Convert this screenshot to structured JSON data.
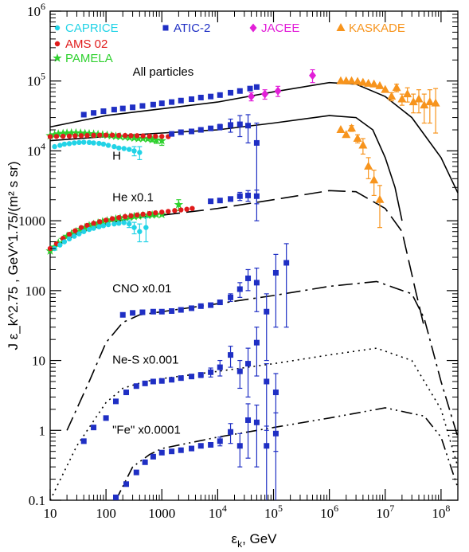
{
  "chart_data": {
    "type": "scatter",
    "xlabel": "ε_k, GeV",
    "ylabel": "J ε_k^2.75 , GeV^1.75/(m² s sr)",
    "xscale": "log",
    "yscale": "log",
    "xlim": [
      10,
      200000000
    ],
    "ylim": [
      0.1,
      1000000
    ],
    "grid": false,
    "legend_position": "top",
    "x_ticks": [
      {
        "value": 10,
        "label": "10"
      },
      {
        "value": 100,
        "label": "100"
      },
      {
        "value": 1000,
        "label": "1000"
      },
      {
        "value": 10000,
        "label": "10⁴"
      },
      {
        "value": 100000,
        "label": "10⁵"
      },
      {
        "value": 1000000,
        "label": "10⁶"
      },
      {
        "value": 10000000,
        "label": "10⁷"
      },
      {
        "value": 100000000,
        "label": "10⁸"
      }
    ],
    "y_ticks": [
      {
        "value": 0.1,
        "label": "0.1"
      },
      {
        "value": 1,
        "label": "1"
      },
      {
        "value": 10,
        "label": "10"
      },
      {
        "value": 100,
        "label": "100"
      },
      {
        "value": 1000,
        "label": "1000"
      },
      {
        "value": 10000,
        "label": "10⁴"
      },
      {
        "value": 100000,
        "label": "10⁵"
      },
      {
        "value": 1000000,
        "label": "10⁶"
      }
    ],
    "legend": [
      {
        "name": "CAPRICE",
        "color": "#22d3e6",
        "marker": "circle"
      },
      {
        "name": "ATIC-2",
        "color": "#1f2fc4",
        "marker": "square"
      },
      {
        "name": "JACEE",
        "color": "#e21fd8",
        "marker": "diamond"
      },
      {
        "name": "KASKADE",
        "color": "#f7941d",
        "marker": "triangle"
      },
      {
        "name": "AMS 02",
        "color": "#e01b1b",
        "marker": "circle"
      },
      {
        "name": "PAMELA",
        "color": "#2ed12e",
        "marker": "star"
      }
    ],
    "series_labels": [
      {
        "text": "All particles",
        "x": 300,
        "y": 120000
      },
      {
        "text": "H",
        "x": 130,
        "y": 7500
      },
      {
        "text": "He x0.1",
        "x": 130,
        "y": 1900
      },
      {
        "text": "CNO x0.01",
        "x": 130,
        "y": 95
      },
      {
        "text": "Ne-S x0.001",
        "x": 130,
        "y": 9
      },
      {
        "text": "\"Fe\" x0.0001",
        "x": 130,
        "y": 0.9
      }
    ],
    "curves": [
      {
        "name": "All particles",
        "dash": "solid",
        "x": [
          10,
          100,
          1000,
          10000,
          100000,
          1000000,
          3000000,
          10000000,
          30000000,
          100000000,
          200000000
        ],
        "y": [
          22000,
          32000,
          40000,
          50000,
          70000,
          95000,
          90000,
          60000,
          30000,
          8000,
          2500
        ]
      },
      {
        "name": "H",
        "dash": "solid",
        "x": [
          10,
          100,
          1000,
          10000,
          100000,
          1000000,
          3000000,
          6000000,
          10000000,
          15000000,
          20000000
        ],
        "y": [
          14000,
          16000,
          18000,
          20000,
          25000,
          32000,
          30000,
          20000,
          8000,
          3000,
          1000
        ]
      },
      {
        "name": "He x0.1",
        "dash": "longdash",
        "x": [
          10,
          30,
          100,
          300,
          1000,
          10000,
          100000,
          1000000,
          3000000,
          10000000,
          20000000,
          35000000,
          50000000
        ],
        "y": [
          380,
          650,
          900,
          1100,
          1200,
          1500,
          2000,
          2700,
          2600,
          1500,
          700,
          100,
          30
        ]
      },
      {
        "name": "CNO x0.01",
        "dash": "dashdot",
        "x": [
          20,
          50,
          100,
          200,
          400,
          1000,
          10000,
          100000,
          1000000,
          7000000,
          30000000,
          50000000,
          100000000,
          200000000
        ],
        "y": [
          1,
          5,
          18,
          35,
          45,
          50,
          65,
          85,
          115,
          135,
          90,
          40,
          5,
          0.8
        ]
      },
      {
        "name": "Ne-S x0.001",
        "dash": "dotted",
        "x": [
          10,
          30,
          100,
          200,
          500,
          1000,
          10000,
          100000,
          1000000,
          7000000,
          30000000,
          100000000,
          200000000
        ],
        "y": [
          0.1,
          0.6,
          2.5,
          4,
          5,
          5.5,
          7,
          9,
          12,
          15,
          10,
          2,
          0.3
        ]
      },
      {
        "name": "\"Fe\" x0.0001",
        "dash": "dashdotdot",
        "x": [
          150,
          300,
          600,
          1000,
          10000,
          100000,
          1000000,
          10000000,
          50000000,
          100000000,
          200000000
        ],
        "y": [
          0.1,
          0.3,
          0.45,
          0.55,
          0.8,
          1.1,
          1.5,
          2.1,
          1.6,
          0.8,
          0.15
        ]
      }
    ],
    "atic": {
      "all": {
        "x": [
          40,
          60,
          90,
          140,
          200,
          300,
          450,
          700,
          1000,
          1500,
          2200,
          3400,
          5000,
          7500,
          11000,
          17000,
          25000,
          38000,
          50000
        ],
        "y": [
          33000,
          35000,
          37000,
          39000,
          40500,
          42000,
          44000,
          46000,
          48000,
          50000,
          52500,
          55000,
          58000,
          60000,
          63000,
          68000,
          72000,
          78000,
          82000
        ]
      },
      "H": {
        "x": [
          1500,
          2200,
          3400,
          5000,
          7500,
          11000,
          17000,
          25000,
          35000,
          50000
        ],
        "y": [
          17500,
          18500,
          19000,
          20000,
          21000,
          22000,
          23500,
          24000,
          23000,
          13000
        ],
        "err": [
          0,
          0,
          0,
          0,
          0,
          2000,
          5000,
          8000,
          10000,
          12000
        ]
      },
      "He": {
        "x": [
          7500,
          11000,
          17000,
          25000,
          35000,
          50000
        ],
        "y": [
          1900,
          1950,
          2050,
          2250,
          2300,
          2250
        ],
        "err": [
          0,
          0,
          150,
          300,
          400,
          500
        ]
      },
      "CNO": {
        "x": [
          200,
          300,
          450,
          700,
          1000,
          1500,
          2200,
          3400,
          5000,
          7500,
          11000,
          17000,
          25000,
          35000,
          50000,
          75000,
          110000,
          170000
        ],
        "y": [
          45,
          48,
          49,
          50,
          50,
          51,
          53,
          56,
          60,
          62,
          68,
          80,
          105,
          150,
          130,
          50,
          180,
          250
        ],
        "err": [
          0,
          0,
          0,
          0,
          0,
          0,
          0,
          0,
          0,
          0,
          0,
          10,
          25,
          50,
          80,
          40,
          150,
          220
        ]
      },
      "NeS": {
        "x": [
          40,
          60,
          100,
          150,
          230,
          350,
          500,
          700,
          1000,
          1500,
          2200,
          3400,
          5000,
          7500,
          11000,
          17000,
          25000,
          35000,
          50000,
          75000,
          110000
        ],
        "y": [
          0.7,
          1.1,
          1.5,
          2.6,
          3.5,
          4.3,
          4.7,
          5,
          5.1,
          5.3,
          5.6,
          5.9,
          6.2,
          6.8,
          8,
          12,
          7,
          9,
          18,
          5,
          3.5
        ],
        "err": [
          0,
          0,
          0,
          0,
          0,
          0,
          0,
          0,
          0,
          0,
          0,
          0,
          0.5,
          1,
          2,
          4,
          3,
          6,
          12,
          4,
          3
        ]
      },
      "Fe": {
        "x": [
          150,
          230,
          350,
          500,
          700,
          1000,
          1500,
          2200,
          3400,
          5000,
          7500,
          11000,
          17000,
          25000,
          35000,
          50000,
          75000,
          110000
        ],
        "y": [
          0.11,
          0.17,
          0.25,
          0.35,
          0.42,
          0.48,
          0.5,
          0.52,
          0.55,
          0.6,
          0.62,
          0.7,
          0.95,
          0.6,
          1.4,
          1.3,
          0.6,
          0.9
        ],
        "err": [
          0,
          0,
          0,
          0,
          0,
          0,
          0,
          0,
          0,
          0,
          0,
          0.1,
          0.3,
          0.3,
          1,
          1,
          0.55,
          0.88
        ]
      }
    },
    "jacee": {
      "x": [
        40000,
        70000,
        120000,
        500000
      ],
      "y": [
        60000,
        65000,
        72000,
        120000
      ],
      "err": [
        8000,
        10000,
        12000,
        25000
      ]
    },
    "kaskade": {
      "all": {
        "x": [
          1600000,
          2000000,
          2500000,
          3200000,
          4000000,
          5000000,
          6300000,
          8000000,
          10000000,
          13000000,
          16000000,
          20000000,
          25000000,
          32000000,
          40000000,
          50000000,
          63000000,
          80000000
        ],
        "y": [
          100000,
          100000,
          100000,
          98000,
          95000,
          92000,
          90000,
          85000,
          75000,
          60000,
          80000,
          55000,
          65000,
          50000,
          55000,
          45000,
          50000,
          48000
        ],
        "err": [
          0,
          0,
          0,
          0,
          0,
          0,
          0,
          0,
          0,
          8000,
          10000,
          10000,
          15000,
          15000,
          20000,
          20000,
          25000,
          30000
        ]
      },
      "H": {
        "x": [
          1600000,
          2000000,
          2500000,
          3200000,
          4000000,
          5000000,
          6300000,
          8000000
        ],
        "y": [
          20000,
          17000,
          21000,
          15000,
          12000,
          6000,
          3800,
          2000
        ],
        "err": [
          0,
          0,
          2000,
          2000,
          3000,
          2000,
          1500,
          1200
        ]
      }
    },
    "caprice": {
      "H": {
        "x": [
          12,
          15,
          18,
          22,
          27,
          33,
          40,
          50,
          60,
          75,
          90,
          110,
          140,
          170,
          210,
          260,
          320,
          400
        ],
        "y": [
          11500,
          12000,
          12500,
          12700,
          13000,
          13200,
          13300,
          13200,
          13000,
          12800,
          12500,
          12000,
          11500,
          11000,
          10800,
          10500,
          10000,
          9500
        ],
        "err": [
          0,
          0,
          0,
          0,
          0,
          0,
          0,
          0,
          0,
          0,
          0,
          0,
          0,
          0,
          0,
          0,
          1500,
          2000
        ]
      },
      "He": {
        "x": [
          12,
          15,
          18,
          22,
          27,
          33,
          40,
          50,
          60,
          75,
          90,
          110,
          140,
          170,
          210,
          260,
          320,
          400,
          520
        ],
        "y": [
          400,
          450,
          500,
          550,
          600,
          650,
          700,
          750,
          780,
          820,
          850,
          880,
          900,
          920,
          940,
          900,
          800,
          700,
          800
        ],
        "err": [
          0,
          0,
          0,
          0,
          0,
          0,
          0,
          0,
          0,
          0,
          0,
          0,
          0,
          0,
          0,
          100,
          150,
          200,
          300
        ]
      }
    },
    "ams02": {
      "H": {
        "x": [
          10,
          13,
          17,
          22,
          28,
          36,
          46,
          60,
          77,
          100,
          130,
          170,
          220,
          280,
          360,
          460,
          600,
          770,
          1000,
          1300
        ],
        "y": [
          16000,
          16100,
          16200,
          16300,
          16400,
          16500,
          16600,
          16700,
          16800,
          16800,
          16800,
          16700,
          16600,
          16500,
          16500,
          16400,
          16300,
          16200,
          16100,
          16000
        ]
      },
      "He": {
        "x": [
          10,
          13,
          17,
          22,
          28,
          36,
          46,
          60,
          77,
          100,
          130,
          170,
          220,
          280,
          360,
          460,
          600,
          770,
          1000,
          1300,
          1700,
          2200,
          2800,
          3500
        ],
        "y": [
          400,
          470,
          560,
          640,
          720,
          800,
          860,
          920,
          970,
          1020,
          1070,
          1110,
          1150,
          1180,
          1210,
          1240,
          1270,
          1300,
          1330,
          1360,
          1400,
          1430,
          1460,
          1500
        ]
      }
    },
    "pamela": {
      "H": {
        "x": [
          10,
          12,
          14,
          17,
          20,
          24,
          29,
          35,
          42,
          50,
          60,
          72,
          87,
          105,
          125,
          150,
          180,
          220,
          265,
          320,
          380,
          460,
          560,
          670,
          800,
          1000
        ],
        "y": [
          16500,
          17000,
          17500,
          17800,
          18000,
          18100,
          18100,
          18000,
          17800,
          17600,
          17400,
          17200,
          17000,
          16800,
          16500,
          16200,
          16000,
          15800,
          15500,
          15300,
          15000,
          15000,
          14800,
          14500,
          14300,
          14000
        ],
        "err": [
          0,
          0,
          0,
          0,
          0,
          0,
          0,
          0,
          0,
          0,
          0,
          0,
          0,
          0,
          0,
          0,
          0,
          0,
          0,
          0,
          0,
          0,
          0,
          1000,
          1500,
          2000
        ]
      },
      "He": {
        "x": [
          10,
          12,
          14,
          17,
          20,
          24,
          29,
          35,
          42,
          50,
          60,
          72,
          87,
          105,
          125,
          150,
          180,
          220,
          265,
          320,
          380,
          460,
          560,
          670,
          800,
          1000,
          2000
        ],
        "y": [
          370,
          420,
          480,
          540,
          600,
          650,
          700,
          750,
          800,
          850,
          890,
          930,
          970,
          1000,
          1030,
          1060,
          1090,
          1110,
          1130,
          1150,
          1170,
          1190,
          1200,
          1210,
          1220,
          1230,
          1700
        ],
        "err": [
          0,
          0,
          0,
          0,
          0,
          0,
          0,
          0,
          0,
          0,
          0,
          0,
          0,
          0,
          0,
          0,
          0,
          0,
          0,
          0,
          0,
          0,
          0,
          0,
          0,
          0,
          300
        ]
      }
    }
  }
}
